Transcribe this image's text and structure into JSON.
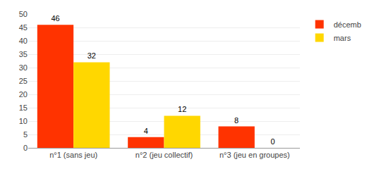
{
  "chart_data": {
    "type": "bar",
    "categories": [
      "n°1 (sans jeu)",
      "n°2 (jeu collectif)",
      "n°3 (jeu en groupes)"
    ],
    "series": [
      {
        "name": "décemb",
        "color": "#FF3300",
        "values": [
          46,
          4,
          8
        ]
      },
      {
        "name": "mars",
        "color": "#FFD700",
        "values": [
          32,
          12,
          0
        ]
      }
    ],
    "ylim": [
      0,
      50
    ],
    "yticks": [
      0,
      5,
      10,
      15,
      20,
      25,
      30,
      35,
      40,
      45,
      50
    ],
    "grid": true,
    "legend": "upper right",
    "data_labels": true
  }
}
